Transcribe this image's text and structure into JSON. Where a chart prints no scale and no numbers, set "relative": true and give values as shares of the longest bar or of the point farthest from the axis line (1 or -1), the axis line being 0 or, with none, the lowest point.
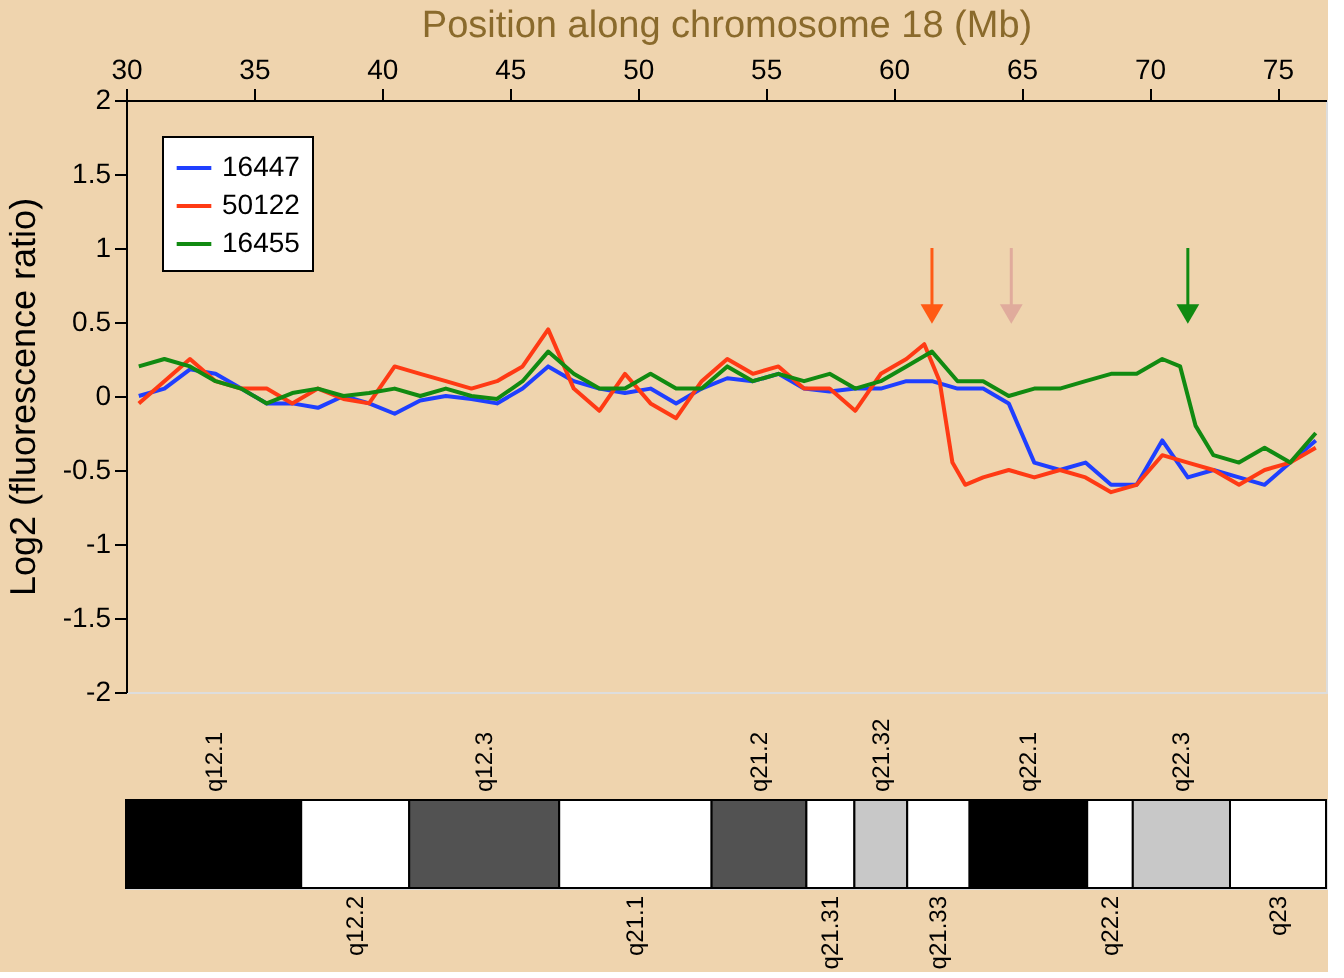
{
  "chart_data": [
    {
      "type": "line",
      "xlabel": "Position along chromosome 18 (Mb)",
      "ylabel": "Log2 (fluorescence  ratio)",
      "xlim": [
        30,
        76.9
      ],
      "xticks": [
        30,
        35,
        40,
        45,
        50,
        55,
        60,
        65,
        70,
        75
      ],
      "ylim": [
        -2,
        2
      ],
      "yticks": [
        -2,
        -1.5,
        -1,
        -0.5,
        0,
        0.5,
        1,
        1.5,
        2
      ],
      "grid": false,
      "legend": "top left",
      "line_style": "solid",
      "marker": "none",
      "series": [
        {
          "name": "16447",
          "color": "#1f3fff",
          "x": [
            30.5,
            31.5,
            32.5,
            33.5,
            34.5,
            35.5,
            36.5,
            37.5,
            38.5,
            39.5,
            40.5,
            41.5,
            42.5,
            43.5,
            44.5,
            45.5,
            46.5,
            47.5,
            48.5,
            49.5,
            50.5,
            51.5,
            52.5,
            53.5,
            54.5,
            55.5,
            56.5,
            57.5,
            58.5,
            59.5,
            60.5,
            61.5,
            62.5,
            63.5,
            64.5,
            65.5,
            66.5,
            67.5,
            68.5,
            69.5,
            70.5,
            71.5,
            72.5,
            73.5,
            74.5,
            75.5,
            76.5
          ],
          "values": [
            0,
            0.05,
            0.18,
            0.15,
            0.05,
            -0.05,
            -0.05,
            -0.08,
            0,
            -0.05,
            -0.12,
            -0.03,
            0,
            -0.02,
            -0.05,
            0.05,
            0.2,
            0.1,
            0.05,
            0.02,
            0.05,
            -0.05,
            0.05,
            0.12,
            0.1,
            0.15,
            0.05,
            0.03,
            0.05,
            0.05,
            0.1,
            0.1,
            0.05,
            0.05,
            -0.05,
            -0.45,
            -0.5,
            -0.45,
            -0.6,
            -0.6,
            -0.3,
            -0.55,
            -0.5,
            -0.55,
            -0.6,
            -0.45,
            -0.3
          ]
        },
        {
          "name": "50122",
          "color": "#ff3a14",
          "x": [
            30.5,
            31.5,
            32.5,
            33.5,
            34.5,
            35.5,
            36.5,
            37.5,
            38.5,
            39.5,
            40.5,
            41.5,
            42.5,
            43.5,
            44.5,
            45.5,
            46.5,
            47.5,
            48.5,
            49.5,
            50.5,
            51.5,
            52.5,
            53.5,
            54.5,
            55.5,
            56.5,
            57.5,
            58.5,
            59.5,
            60.5,
            61.2,
            61.8,
            62.3,
            62.8,
            63.5,
            64.5,
            65.5,
            66.5,
            67.5,
            68.5,
            69.5,
            70.5,
            71.5,
            72.5,
            73.5,
            74.5,
            75.5,
            76.5
          ],
          "values": [
            -0.05,
            0.1,
            0.25,
            0.1,
            0.05,
            0.05,
            -0.05,
            0.05,
            -0.02,
            -0.05,
            0.2,
            0.15,
            0.1,
            0.05,
            0.1,
            0.2,
            0.45,
            0.05,
            -0.1,
            0.15,
            -0.05,
            -0.15,
            0.1,
            0.25,
            0.15,
            0.2,
            0.05,
            0.05,
            -0.1,
            0.15,
            0.25,
            0.35,
            0.1,
            -0.45,
            -0.6,
            -0.55,
            -0.5,
            -0.55,
            -0.5,
            -0.55,
            -0.65,
            -0.6,
            -0.4,
            -0.45,
            -0.5,
            -0.6,
            -0.5,
            -0.45,
            -0.35
          ]
        },
        {
          "name": "16455",
          "color": "#118a11",
          "x": [
            30.5,
            31.5,
            32.5,
            33.5,
            34.5,
            35.5,
            36.5,
            37.5,
            38.5,
            39.5,
            40.5,
            41.5,
            42.5,
            43.5,
            44.5,
            45.5,
            46.5,
            47.5,
            48.5,
            49.5,
            50.5,
            51.5,
            52.5,
            53.5,
            54.5,
            55.5,
            56.5,
            57.5,
            58.5,
            59.5,
            60.5,
            61.5,
            62.5,
            63.5,
            64.5,
            65.5,
            66.5,
            67.5,
            68.5,
            69.5,
            70.5,
            71.2,
            71.8,
            72.5,
            73.5,
            74.5,
            75.5,
            76.5
          ],
          "values": [
            0.2,
            0.25,
            0.2,
            0.1,
            0.05,
            -0.05,
            0.02,
            0.05,
            0,
            0.02,
            0.05,
            0,
            0.05,
            0,
            -0.02,
            0.1,
            0.3,
            0.15,
            0.05,
            0.05,
            0.15,
            0.05,
            0.05,
            0.2,
            0.1,
            0.15,
            0.1,
            0.15,
            0.05,
            0.1,
            0.2,
            0.3,
            0.1,
            0.1,
            0,
            0.05,
            0.05,
            0.1,
            0.15,
            0.15,
            0.25,
            0.2,
            -0.2,
            -0.4,
            -0.45,
            -0.35,
            -0.45,
            -0.25
          ]
        }
      ],
      "ref_lines": [
        {
          "axis": "x",
          "value": 61.5,
          "color": "#ff5a14"
        },
        {
          "axis": "x",
          "value": 64.6,
          "color": "#e0ab9c"
        },
        {
          "axis": "x",
          "value": 71.5,
          "color": "#118a11"
        }
      ]
    },
    {
      "type": "bar",
      "orientation": "horizontal",
      "stacked": true,
      "relative": true,
      "categories": [
        null
      ],
      "series": [
        {
          "name": "q12.1",
          "color": "#000000",
          "values": [
            0.146
          ]
        },
        {
          "name": "q12.2",
          "color": "#ffffff",
          "values": [
            0.09
          ]
        },
        {
          "name": "q12.3",
          "color": "#525252",
          "values": [
            0.125
          ]
        },
        {
          "name": "q21.1",
          "color": "#ffffff",
          "values": [
            0.127
          ]
        },
        {
          "name": "q21.2",
          "color": "#525252",
          "values": [
            0.079
          ]
        },
        {
          "name": "q21.31",
          "color": "#ffffff",
          "values": [
            0.04
          ]
        },
        {
          "name": "q21.32",
          "color": "#c8c8c8",
          "values": [
            0.044
          ]
        },
        {
          "name": "q21.33",
          "color": "#ffffff",
          "values": [
            0.052
          ]
        },
        {
          "name": "q22.1",
          "color": "#000000",
          "values": [
            0.098
          ]
        },
        {
          "name": "q22.2",
          "color": "#ffffff",
          "values": [
            0.038
          ]
        },
        {
          "name": "q22.3",
          "color": "#c8c8c8",
          "values": [
            0.081
          ]
        },
        {
          "name": "q23",
          "color": "#ffffff",
          "values": [
            0.08
          ]
        }
      ]
    }
  ]
}
